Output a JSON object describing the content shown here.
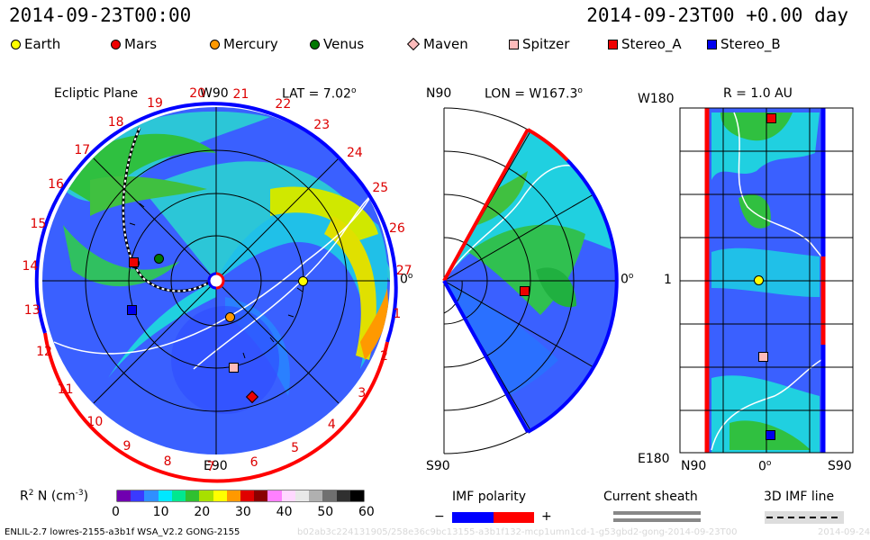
{
  "header": {
    "datetime_left": "2014-09-23T00:00",
    "datetime_right": "2014-09-23T00 +0.00 day"
  },
  "legend": [
    {
      "name": "Earth",
      "color": "#ffff00",
      "shape": "circle"
    },
    {
      "name": "Mars",
      "color": "#ee0000",
      "shape": "circle"
    },
    {
      "name": "Mercury",
      "color": "#ff9900",
      "shape": "circle"
    },
    {
      "name": "Venus",
      "color": "#007700",
      "shape": "circle"
    },
    {
      "name": "Maven",
      "color": "#ffbbbb",
      "shape": "diamond"
    },
    {
      "name": "Spitzer",
      "color": "#ffbbbb",
      "shape": "square"
    },
    {
      "name": "Stereo_A",
      "color": "#ee0000",
      "shape": "square"
    },
    {
      "name": "Stereo_B",
      "color": "#0000ee",
      "shape": "square"
    }
  ],
  "ecliptic_panel": {
    "title": "Ecliptic Plane",
    "top_label": "W90",
    "bottom_label": "E90",
    "right_label": "0",
    "lat_label": "LAT = 7.02",
    "degree_mark": "o",
    "carrington_numbers": [
      "1",
      "2",
      "3",
      "4",
      "5",
      "6",
      "7",
      "8",
      "9",
      "10",
      "11",
      "12",
      "13",
      "14",
      "15",
      "16",
      "17",
      "18",
      "19",
      "20",
      "21",
      "22",
      "23",
      "24",
      "25",
      "26",
      "27"
    ]
  },
  "meridional_panel": {
    "top_label": "N90",
    "bottom_label": "S90",
    "lon_label": "LON = W167.3",
    "right_label": "0",
    "degree_mark": "o"
  },
  "radial_panel": {
    "title": "R = 1.0 AU",
    "y_top_label": "W180",
    "y_mid_label": "1",
    "y_bottom_label": "E180",
    "x_left_label": "N90",
    "x_mid_label": "0",
    "x_right_label": "S90",
    "degree_mark": "o"
  },
  "colorbar": {
    "label": "R",
    "label_sup": "2",
    "label_rest": " N (cm",
    "label_exp": "-3",
    "label_close": ")",
    "ticks": [
      "0",
      "10",
      "20",
      "30",
      "40",
      "50",
      "60"
    ],
    "colors": [
      "#7000b0",
      "#3a3aff",
      "#2f8fff",
      "#00e8ff",
      "#00e890",
      "#30c030",
      "#a8e000",
      "#ffff00",
      "#ff9900",
      "#e00000",
      "#8b0000",
      "#ff80ff",
      "#ffd8ff",
      "#e8e8e8",
      "#b0b0b0",
      "#707070",
      "#303030",
      "#000000"
    ]
  },
  "imf_legend": {
    "title": "IMF polarity",
    "minus": "−",
    "plus": "+",
    "neg_color": "#0000ff",
    "pos_color": "#ff0000"
  },
  "current_sheath": {
    "title": "Current sheath"
  },
  "imf_3d": {
    "title": "3D IMF line"
  },
  "footer": {
    "left": "ENLIL-2.7 lowres-2155-a3b1f WSA_V2.2 GONG-2155",
    "watermark": "b02ab3c224131905/258e36c9bc13155-a3b1f132-mcp1umn1cd-1-g53gbd2-gong-2014-09-23T00",
    "right": "2014-09-24"
  }
}
